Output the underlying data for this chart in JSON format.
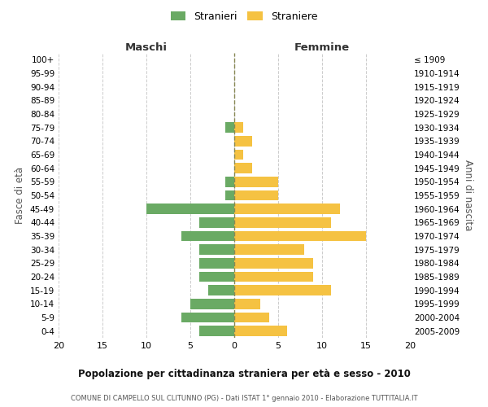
{
  "age_groups": [
    "100+",
    "95-99",
    "90-94",
    "85-89",
    "80-84",
    "75-79",
    "70-74",
    "65-69",
    "60-64",
    "55-59",
    "50-54",
    "45-49",
    "40-44",
    "35-39",
    "30-34",
    "25-29",
    "20-24",
    "15-19",
    "10-14",
    "5-9",
    "0-4"
  ],
  "birth_years": [
    "≤ 1909",
    "1910-1914",
    "1915-1919",
    "1920-1924",
    "1925-1929",
    "1930-1934",
    "1935-1939",
    "1940-1944",
    "1945-1949",
    "1950-1954",
    "1955-1959",
    "1960-1964",
    "1965-1969",
    "1970-1974",
    "1975-1979",
    "1980-1984",
    "1985-1989",
    "1990-1994",
    "1995-1999",
    "2000-2004",
    "2005-2009"
  ],
  "males": [
    0,
    0,
    0,
    0,
    0,
    1,
    0,
    0,
    0,
    1,
    1,
    10,
    4,
    6,
    4,
    4,
    4,
    3,
    5,
    6,
    4
  ],
  "females": [
    0,
    0,
    0,
    0,
    0,
    1,
    2,
    1,
    2,
    5,
    5,
    12,
    11,
    15,
    8,
    9,
    9,
    11,
    3,
    4,
    6
  ],
  "male_color": "#6aaa64",
  "female_color": "#f5c242",
  "grid_color": "#cccccc",
  "title": "Popolazione per cittadinanza straniera per età e sesso - 2010",
  "subtitle": "COMUNE DI CAMPELLO SUL CLITUNNO (PG) - Dati ISTAT 1° gennaio 2010 - Elaborazione TUTTITALIA.IT",
  "xlabel_left": "Maschi",
  "xlabel_right": "Femmine",
  "ylabel_left": "Fasce di età",
  "ylabel_right": "Anni di nascita",
  "legend_male": "Stranieri",
  "legend_female": "Straniere",
  "xlim": 20,
  "background_color": "#ffffff"
}
